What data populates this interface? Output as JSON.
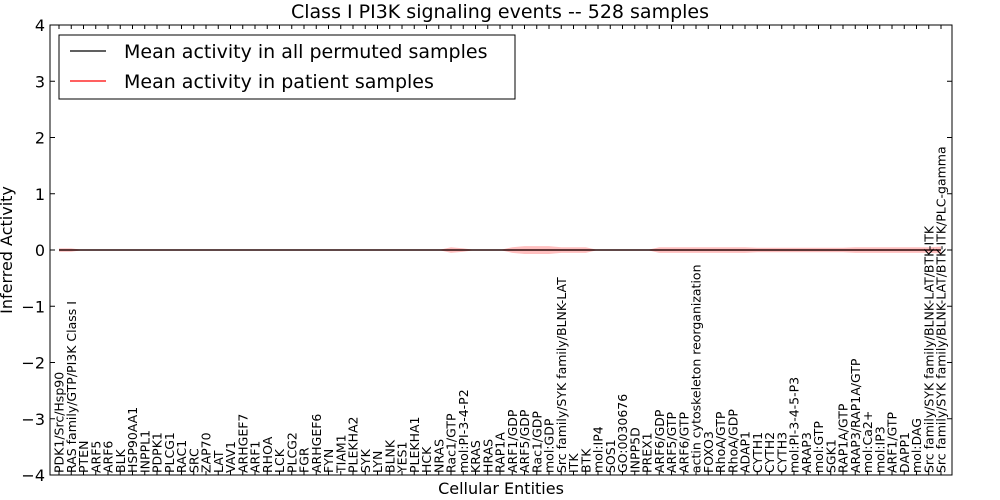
{
  "chart_data": {
    "type": "line",
    "title": "Class I PI3K signaling events -- 528 samples",
    "xlabel": "Cellular Entities",
    "ylabel": "Inferred Activity",
    "ylim": [
      -4,
      4
    ],
    "yticks": [
      "4",
      "3",
      "2",
      "1",
      "0",
      "−1",
      "−2",
      "−3",
      "−4"
    ],
    "ytick_values": [
      4,
      3,
      2,
      1,
      0,
      -1,
      -2,
      -3,
      -4
    ],
    "legend_position": "top-left",
    "grid": false,
    "categories": [
      "PDK1/Src/Hsp90",
      "RAS family/GTP/PI3K Class I",
      "PTEN",
      "ARF5",
      "ARF6",
      "BLK",
      "HSP90AA1",
      "INPPL1",
      "PDPK1",
      "PLCG1",
      "RAC1",
      "SRC",
      "ZAP70",
      "LAT",
      "VAV1",
      "ARHGEF7",
      "ARF1",
      "RHOA",
      "LCK",
      "PLCG2",
      "FGR",
      "ARHGEF6",
      "FYN",
      "TIAM1",
      "PLEKHA2",
      "SYK",
      "LYN",
      "BLNK",
      "YES1",
      "PLEKHA1",
      "HCK",
      "NRAS",
      "Rac1/GTP",
      "mol:PI-3-4-P2",
      "KRAS",
      "HRAS",
      "RAP1A",
      "ARF1/GDP",
      "ARF5/GDP",
      "Rac1/GDP",
      "mol:GDP",
      "Src family/SYK family/BLNK-LAT",
      "ITK",
      "BTK",
      "mol:IP4",
      "SOS1",
      "GO:0030676",
      "INPP5D",
      "PREX1",
      "ARF6/GDP",
      "ARF5/GTP",
      "ARF6/GTP",
      "actin cytoskeleton reorganization",
      "FOXO3",
      "RhoA/GTP",
      "RhoA/GDP",
      "ADAP1",
      "CYTH1",
      "CYTH2",
      "CYTH3",
      "mol:PI-3-4-5-P3",
      "ARAP3",
      "mol:GTP",
      "SGK1",
      "RAP1A/GTP",
      "ARAP3/RAP1A/GTP",
      "mol:Ca2+",
      "mol:IP3",
      "ARF1/GTP",
      "DAPP1",
      "mol:DAG",
      "Src family/SYK family/BLNK-LAT/BTK-ITK",
      "Src family/SYK family/BLNK-LAT/BTK-ITK/PLC-gamma"
    ],
    "series": [
      {
        "name": "Mean activity in all permuted samples",
        "color": "#000000",
        "values": [
          0,
          0,
          0,
          0,
          0,
          0,
          0,
          0,
          0,
          0,
          0,
          0,
          0,
          0,
          0,
          0,
          0,
          0,
          0,
          0,
          0,
          0,
          0,
          0,
          0,
          0,
          0,
          0,
          0,
          0,
          0,
          0,
          0,
          0,
          0,
          0,
          0,
          0,
          0,
          0,
          0,
          0,
          0,
          0,
          0,
          0,
          0,
          0,
          0,
          0,
          0,
          0,
          0,
          0,
          0,
          0,
          0,
          0,
          0,
          0,
          0,
          0,
          0,
          0,
          0,
          0,
          0,
          0,
          0,
          0,
          0,
          0,
          0
        ]
      },
      {
        "name": "Mean activity in patient samples",
        "color": "#ff0000",
        "values": [
          0,
          0,
          0,
          0,
          0,
          0,
          0,
          0,
          0,
          0,
          0,
          0,
          0,
          0,
          0,
          0,
          0,
          0,
          0,
          0,
          0,
          0,
          0,
          0,
          0,
          0,
          0,
          0,
          0,
          0,
          0,
          0,
          0,
          0,
          0,
          0,
          0,
          0,
          0,
          0,
          0,
          0,
          0,
          0,
          0,
          0,
          0,
          0,
          0,
          0,
          0,
          0,
          0,
          0,
          0,
          0,
          0,
          0,
          0,
          0,
          0,
          0,
          0,
          0,
          0,
          0,
          0,
          0,
          0,
          0,
          0,
          0,
          0
        ],
        "spread": [
          0.03,
          0.03,
          0,
          0,
          0,
          0,
          0,
          0,
          0,
          0,
          0,
          0,
          0,
          0,
          0,
          0,
          0,
          0,
          0,
          0,
          0,
          0,
          0,
          0,
          0,
          0,
          0,
          0,
          0,
          0,
          0,
          0,
          0.05,
          0.03,
          0,
          0,
          0,
          0.05,
          0.07,
          0.07,
          0.07,
          0.05,
          0.05,
          0.05,
          0,
          0,
          0,
          0,
          0,
          0.05,
          0.05,
          0.05,
          0.05,
          0.05,
          0.05,
          0.05,
          0.05,
          0.04,
          0.04,
          0.04,
          0.04,
          0.04,
          0.04,
          0.04,
          0.04,
          0.05,
          0.05,
          0.05,
          0.05,
          0.05,
          0.05,
          0.05,
          0.06
        ]
      }
    ]
  }
}
